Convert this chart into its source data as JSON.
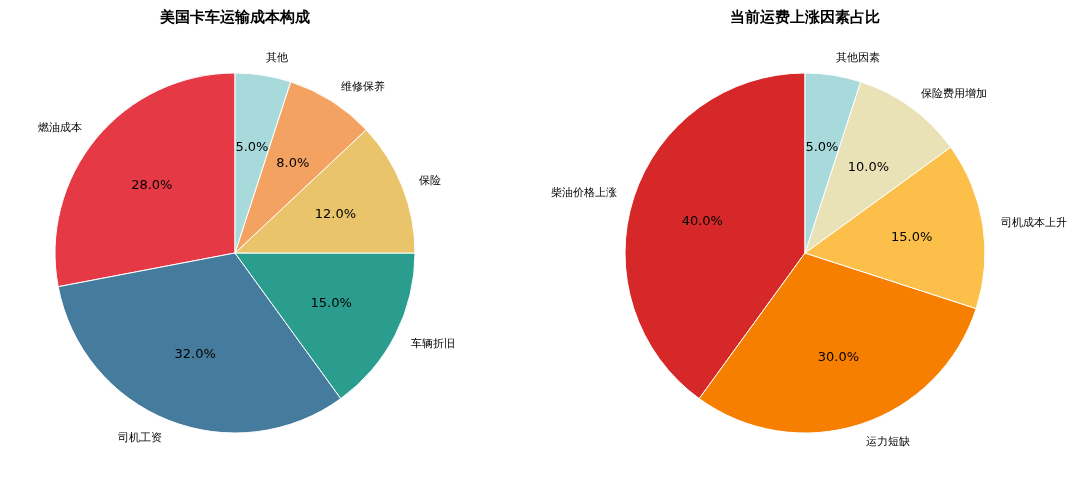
{
  "chart_data": [
    {
      "type": "pie",
      "title": "美国卡车运输成本构成",
      "categories": [
        "燃油成本",
        "司机工资",
        "车辆折旧",
        "保险",
        "维修保养",
        "其他"
      ],
      "values": [
        28,
        32,
        15,
        12,
        8,
        5
      ],
      "colors": [
        "#e63946",
        "#457b9d",
        "#2a9d8f",
        "#e9c46a",
        "#f4a261",
        "#a8dadc"
      ],
      "value_labels": [
        "28.0%",
        "32.0%",
        "15.0%",
        "12.0%",
        "8.0%",
        "5.0%"
      ]
    },
    {
      "type": "pie",
      "title": "当前运费上涨因素占比",
      "categories": [
        "柴油价格上涨",
        "运力短缺",
        "司机成本上升",
        "保险费用增加",
        "其他因素"
      ],
      "values": [
        40,
        30,
        15,
        10,
        5
      ],
      "colors": [
        "#d62828",
        "#f77f00",
        "#fcbf49",
        "#eae2b7",
        "#a8dadc"
      ],
      "value_labels": [
        "40.0%",
        "30.0%",
        "15.0%",
        "10.0%",
        "5.0%"
      ]
    }
  ]
}
